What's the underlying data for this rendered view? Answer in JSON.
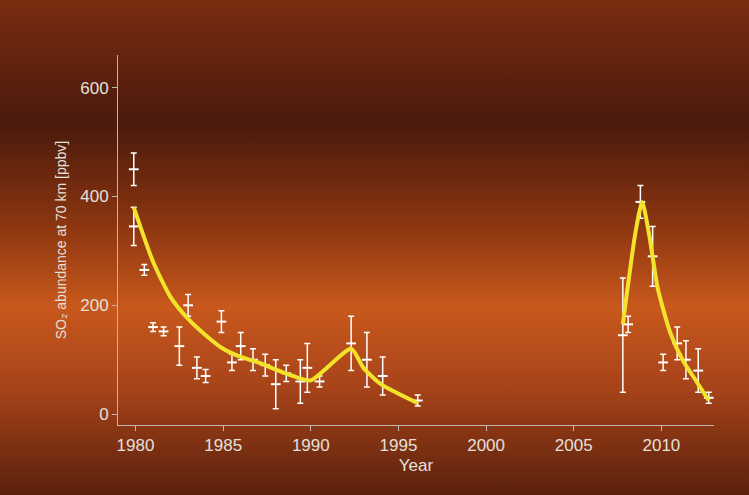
{
  "chart_data": {
    "type": "scatter",
    "x_label": "Year",
    "y_label": "SO₂ abundance at 70 km [ppbv]",
    "xlim": [
      1979,
      2013
    ],
    "xticks": [
      1980,
      1985,
      1990,
      1995,
      2000,
      2005,
      2010
    ],
    "ylim": [
      -20,
      660
    ],
    "yticks": [
      0,
      200,
      400,
      600
    ],
    "grid": false,
    "series": [
      {
        "type": "scatter",
        "color": "#ffffff",
        "marker": "line-ew",
        "x": [
          1979.9,
          1979.9,
          1980.5,
          1981.0,
          1981.6,
          1982.5,
          1983.0,
          1983.5,
          1984.0,
          1984.9,
          1985.5,
          1986.0,
          1986.7,
          1987.4,
          1988.0,
          1988.6,
          1989.4,
          1989.8,
          1990.5,
          1992.3,
          1993.2,
          1994.1,
          1996.1,
          2007.8,
          2008.1,
          2008.8,
          2009.5,
          2010.1,
          2010.9,
          2011.4,
          2012.1,
          2012.7
        ],
        "values": [
          450,
          345,
          265,
          160,
          152,
          125,
          200,
          85,
          70,
          170,
          95,
          125,
          100,
          90,
          55,
          75,
          60,
          85,
          60,
          130,
          100,
          70,
          25,
          145,
          165,
          390,
          290,
          95,
          130,
          100,
          80,
          30
        ],
        "error": [
          30,
          35,
          10,
          8,
          8,
          35,
          20,
          20,
          12,
          20,
          15,
          25,
          20,
          20,
          45,
          15,
          40,
          45,
          10,
          50,
          50,
          35,
          10,
          105,
          15,
          30,
          55,
          15,
          30,
          35,
          40,
          10
        ]
      },
      {
        "type": "line",
        "color": "#f2e32a",
        "line_style": "solid",
        "x": [
          1979.9,
          1981.0,
          1982.0,
          1983.0,
          1984.0,
          1985.0,
          1986.0,
          1987.0,
          1988.0,
          1989.0,
          1990.0,
          1992.3,
          1993.0,
          1994.0,
          1996.1,
          2002.0,
          2007.8,
          2008.5,
          2008.9,
          2009.3,
          2009.8,
          2010.5,
          2011.2,
          2012.0,
          2012.7
        ],
        "values": [
          380,
          280,
          215,
          175,
          145,
          120,
          105,
          95,
          82,
          70,
          62,
          120,
          85,
          55,
          20,
          null,
          165,
          330,
          390,
          330,
          230,
          150,
          100,
          60,
          25
        ]
      }
    ]
  }
}
